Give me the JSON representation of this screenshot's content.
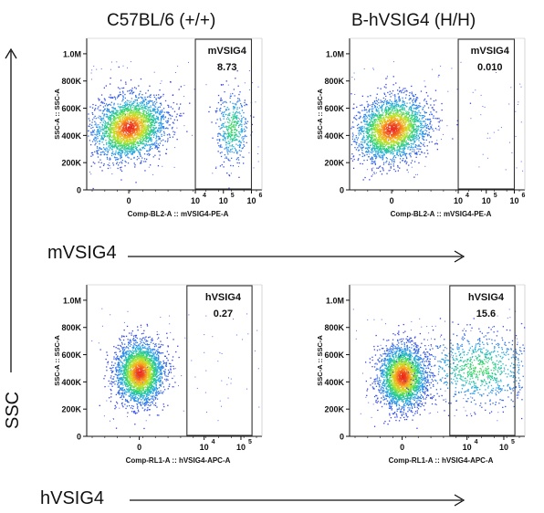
{
  "column_titles": [
    "C57BL/6 (+/+)",
    "B-hVSIG4 (H/H)"
  ],
  "row_markers": [
    "mVSIG4",
    "hVSIG4"
  ],
  "y_axis_marker": "SSC",
  "chart_data": [
    {
      "type": "scatter",
      "id": "mvsig4-wt",
      "xlabel": "Comp-BL2-A :: mVSIG4-PE-A",
      "ylabel": "SSC-A :: SSC-A",
      "x_tick_labels": [
        {
          "main": "0",
          "exp": ""
        },
        {
          "main": "10",
          "exp": "4"
        },
        {
          "main": "10",
          "exp": "5"
        },
        {
          "main": "10",
          "exp": "6"
        }
      ],
      "y_tick_labels": [
        "0",
        "200K",
        "400K",
        "600K",
        "800K",
        "1.0M"
      ],
      "gate": {
        "name": "mVSIG4",
        "value": "8.73",
        "x_range": [
          10000,
          1000000
        ]
      },
      "populations": [
        {
          "x_center": 0,
          "y_center": 460000,
          "density": "high"
        },
        {
          "x_center": 200000,
          "y_center": 460000,
          "density": "low"
        }
      ]
    },
    {
      "type": "scatter",
      "id": "mvsig4-hum",
      "xlabel": "Comp-BL2-A :: mVSIG4-PE-A",
      "ylabel": "SSC-A :: SSC-A",
      "x_tick_labels": [
        {
          "main": "0",
          "exp": ""
        },
        {
          "main": "10",
          "exp": "4"
        },
        {
          "main": "10",
          "exp": "5"
        },
        {
          "main": "10",
          "exp": "6"
        }
      ],
      "y_tick_labels": [
        "0",
        "200K",
        "400K",
        "600K",
        "800K",
        "1.0M"
      ],
      "gate": {
        "name": "mVSIG4",
        "value": "0.010",
        "x_range": [
          10000,
          1000000
        ]
      },
      "populations": [
        {
          "x_center": 0,
          "y_center": 450000,
          "density": "high"
        }
      ]
    },
    {
      "type": "scatter",
      "id": "hvsig4-wt",
      "xlabel": "Comp-RL1-A :: hVSIG4-APC-A",
      "ylabel": "SSC-A :: SSC-A",
      "x_tick_labels": [
        {
          "main": "0",
          "exp": ""
        },
        {
          "main": "10",
          "exp": "4"
        },
        {
          "main": "10",
          "exp": "5"
        }
      ],
      "y_tick_labels": [
        "0",
        "200K",
        "400K",
        "600K",
        "800K",
        "1.0M"
      ],
      "gate": {
        "name": "hVSIG4",
        "value": "0.27",
        "x_range": [
          3000,
          200000
        ]
      },
      "populations": [
        {
          "x_center": 0,
          "y_center": 470000,
          "density": "high"
        }
      ]
    },
    {
      "type": "scatter",
      "id": "hvsig4-hum",
      "xlabel": "Comp-RL1-A :: hVSIG4-APC-A",
      "ylabel": "SSC-A :: SSC-A",
      "x_tick_labels": [
        {
          "main": "0",
          "exp": ""
        },
        {
          "main": "10",
          "exp": "4"
        },
        {
          "main": "10",
          "exp": "5"
        }
      ],
      "y_tick_labels": [
        "0",
        "200K",
        "400K",
        "600K",
        "800K",
        "1.0M"
      ],
      "gate": {
        "name": "hVSIG4",
        "value": "15.6",
        "x_range": [
          3000,
          200000
        ]
      },
      "populations": [
        {
          "x_center": 0,
          "y_center": 440000,
          "density": "high"
        },
        {
          "x_center": 20000,
          "y_center": 500000,
          "density": "medium"
        }
      ]
    }
  ],
  "colors": {
    "axis": "#111111",
    "gate": "#333333",
    "text": "#111111"
  }
}
